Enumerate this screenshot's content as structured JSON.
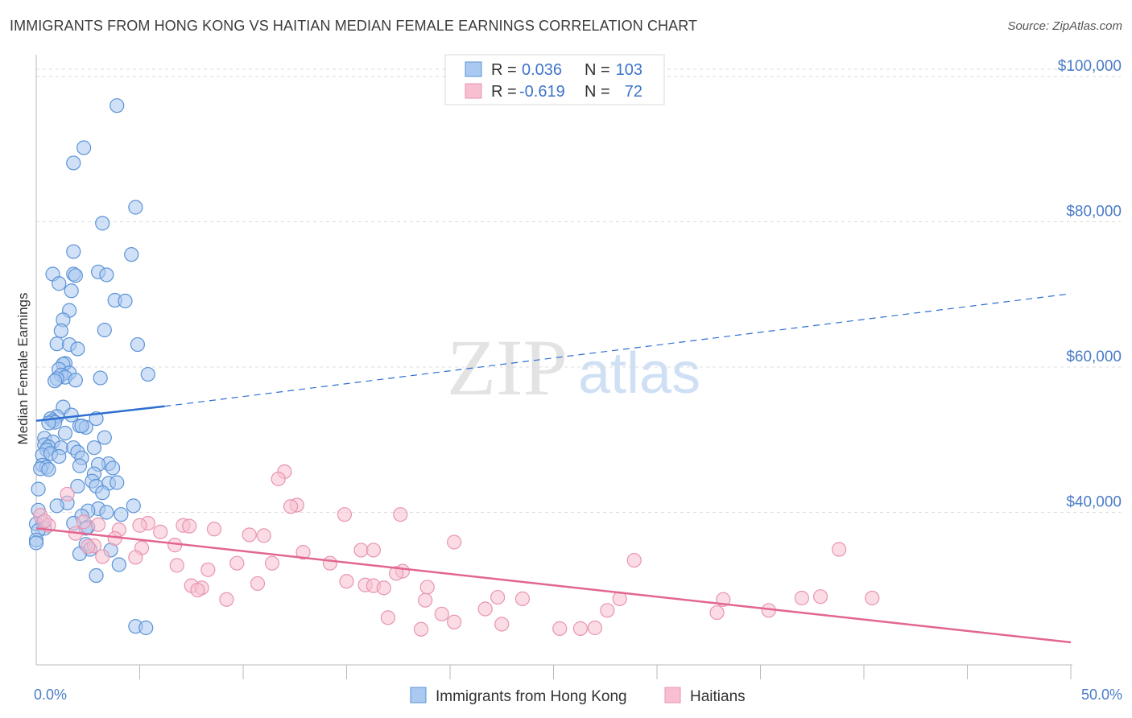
{
  "title": "IMMIGRANTS FROM HONG KONG VS HAITIAN MEDIAN FEMALE EARNINGS CORRELATION CHART",
  "source": "Source: ZipAtlas.com",
  "watermark": {
    "zip": "ZIP",
    "atlas": "atlas"
  },
  "colors": {
    "blue_fill": "#a9c9f0",
    "blue_stroke": "#5b93d6",
    "blue_line": "#2e6fd0",
    "pink_fill": "#f7bfd0",
    "pink_stroke": "#e895b0",
    "pink_line": "#e2668f",
    "axis_text": "#4a7cc9"
  },
  "legend": {
    "rows": [
      {
        "r_label": "R =",
        "r_value": "0.036",
        "n_label": "N =",
        "n_value": "103"
      },
      {
        "r_label": "R =",
        "r_value": "-0.619",
        "n_label": "N =",
        "n_value": "72"
      }
    ]
  },
  "chart_data": {
    "type": "scatter",
    "title": "IMMIGRANTS FROM HONG KONG VS HAITIAN MEDIAN FEMALE EARNINGS CORRELATION CHART",
    "xlabel": "",
    "ylabel": "Median Female Earnings",
    "xlim": [
      0,
      50
    ],
    "ylim": [
      19000,
      103000
    ],
    "x_tick_labels": [
      "0.0%",
      "50.0%"
    ],
    "y_ticks": [
      40000,
      60000,
      80000,
      100000
    ],
    "y_tick_labels": [
      "$40,000",
      "$60,000",
      "$80,000",
      "$100,000"
    ],
    "grid": true,
    "legend_position": "bottom-center",
    "series": [
      {
        "name": "Immigrants from Hong Kong",
        "R": 0.036,
        "N": 103,
        "trend": {
          "x0": 0,
          "y0": 52600,
          "x1": 6.2,
          "y1": 54600,
          "x_ext": 50,
          "y_ext": 70100
        },
        "points": [
          [
            3.9,
            96000
          ],
          [
            2.3,
            90200
          ],
          [
            1.8,
            88100
          ],
          [
            4.8,
            82000
          ],
          [
            3.2,
            79800
          ],
          [
            1.8,
            75900
          ],
          [
            4.6,
            75500
          ],
          [
            0.8,
            72800
          ],
          [
            1.8,
            72800
          ],
          [
            3.0,
            73100
          ],
          [
            1.9,
            72600
          ],
          [
            3.4,
            72700
          ],
          [
            1.1,
            71500
          ],
          [
            1.7,
            70500
          ],
          [
            3.8,
            69200
          ],
          [
            4.3,
            69100
          ],
          [
            1.6,
            67800
          ],
          [
            1.3,
            66500
          ],
          [
            1.2,
            65000
          ],
          [
            3.3,
            65100
          ],
          [
            1.0,
            63200
          ],
          [
            1.6,
            63100
          ],
          [
            4.9,
            63100
          ],
          [
            2.0,
            62500
          ],
          [
            1.4,
            60500
          ],
          [
            1.3,
            60400
          ],
          [
            5.4,
            59000
          ],
          [
            1.1,
            59700
          ],
          [
            1.6,
            59200
          ],
          [
            1.2,
            58900
          ],
          [
            1.4,
            58600
          ],
          [
            1.0,
            58400
          ],
          [
            3.1,
            58500
          ],
          [
            0.9,
            58100
          ],
          [
            1.9,
            58200
          ],
          [
            1.3,
            54500
          ],
          [
            1.0,
            53200
          ],
          [
            1.7,
            53400
          ],
          [
            0.7,
            52900
          ],
          [
            0.8,
            52600
          ],
          [
            0.9,
            52400
          ],
          [
            2.9,
            52900
          ],
          [
            0.6,
            52300
          ],
          [
            2.1,
            51900
          ],
          [
            2.4,
            51700
          ],
          [
            2.2,
            51900
          ],
          [
            1.4,
            50900
          ],
          [
            3.3,
            50300
          ],
          [
            0.4,
            50200
          ],
          [
            0.8,
            49700
          ],
          [
            0.4,
            49300
          ],
          [
            0.6,
            49000
          ],
          [
            1.2,
            48900
          ],
          [
            2.8,
            48900
          ],
          [
            0.5,
            48600
          ],
          [
            1.8,
            48900
          ],
          [
            2.0,
            48300
          ],
          [
            0.3,
            47900
          ],
          [
            0.7,
            48100
          ],
          [
            1.1,
            47700
          ],
          [
            2.2,
            47500
          ],
          [
            3.5,
            46700
          ],
          [
            3.0,
            46600
          ],
          [
            0.3,
            46500
          ],
          [
            0.5,
            46200
          ],
          [
            0.2,
            46000
          ],
          [
            2.1,
            46400
          ],
          [
            0.6,
            45900
          ],
          [
            2.8,
            45300
          ],
          [
            2.0,
            43600
          ],
          [
            2.7,
            44300
          ],
          [
            3.5,
            44000
          ],
          [
            3.9,
            44100
          ],
          [
            2.9,
            43600
          ],
          [
            0.1,
            43200
          ],
          [
            3.2,
            42700
          ],
          [
            1.5,
            41300
          ],
          [
            1.0,
            40900
          ],
          [
            3.0,
            40500
          ],
          [
            2.5,
            40200
          ],
          [
            4.7,
            40900
          ],
          [
            3.4,
            40000
          ],
          [
            0.1,
            40300
          ],
          [
            4.1,
            39700
          ],
          [
            2.2,
            39500
          ],
          [
            0.3,
            38600
          ],
          [
            2.5,
            38000
          ],
          [
            2.4,
            37800
          ],
          [
            0.0,
            38400
          ],
          [
            0.4,
            37800
          ],
          [
            0.1,
            37500
          ],
          [
            0.0,
            36200
          ],
          [
            0.0,
            35800
          ],
          [
            2.4,
            35600
          ],
          [
            2.6,
            34900
          ],
          [
            3.6,
            34800
          ],
          [
            2.1,
            34300
          ],
          [
            4.0,
            32800
          ],
          [
            2.9,
            31300
          ],
          [
            4.8,
            24300
          ],
          [
            5.3,
            24100
          ],
          [
            1.8,
            38500
          ],
          [
            3.7,
            46100
          ]
        ]
      },
      {
        "name": "Haitians",
        "R": -0.619,
        "N": 72,
        "trend": {
          "x0": 0,
          "y0": 37800,
          "x1": 50,
          "y1": 22100
        },
        "points": [
          [
            12.0,
            45600
          ],
          [
            11.7,
            44600
          ],
          [
            12.6,
            41000
          ],
          [
            12.3,
            40800
          ],
          [
            1.5,
            42500
          ],
          [
            0.2,
            39600
          ],
          [
            0.6,
            38200
          ],
          [
            2.3,
            38700
          ],
          [
            3.0,
            38300
          ],
          [
            14.9,
            39700
          ],
          [
            17.6,
            39700
          ],
          [
            5.4,
            38500
          ],
          [
            5.0,
            38200
          ],
          [
            7.1,
            38200
          ],
          [
            7.4,
            38100
          ],
          [
            8.6,
            37700
          ],
          [
            6.0,
            37300
          ],
          [
            1.9,
            37100
          ],
          [
            4.0,
            37600
          ],
          [
            10.3,
            36900
          ],
          [
            11.0,
            36800
          ],
          [
            3.8,
            36400
          ],
          [
            20.2,
            35900
          ],
          [
            6.7,
            35500
          ],
          [
            2.8,
            35400
          ],
          [
            2.5,
            35300
          ],
          [
            5.1,
            35100
          ],
          [
            15.7,
            34800
          ],
          [
            12.9,
            34500
          ],
          [
            16.3,
            34800
          ],
          [
            4.8,
            33800
          ],
          [
            3.2,
            33900
          ],
          [
            9.7,
            33000
          ],
          [
            11.4,
            33000
          ],
          [
            14.2,
            33000
          ],
          [
            6.8,
            32700
          ],
          [
            28.9,
            33400
          ],
          [
            38.8,
            34900
          ],
          [
            17.7,
            31900
          ],
          [
            8.3,
            32100
          ],
          [
            17.4,
            31600
          ],
          [
            15.0,
            30500
          ],
          [
            10.7,
            30200
          ],
          [
            7.5,
            29900
          ],
          [
            8.0,
            29600
          ],
          [
            7.8,
            29300
          ],
          [
            15.9,
            30000
          ],
          [
            16.3,
            29900
          ],
          [
            16.8,
            29600
          ],
          [
            18.9,
            29700
          ],
          [
            9.2,
            28000
          ],
          [
            18.8,
            27900
          ],
          [
            23.5,
            28100
          ],
          [
            22.3,
            28300
          ],
          [
            28.2,
            28100
          ],
          [
            33.2,
            28000
          ],
          [
            37.0,
            28200
          ],
          [
            37.9,
            28400
          ],
          [
            40.4,
            28200
          ],
          [
            21.7,
            26700
          ],
          [
            27.6,
            26500
          ],
          [
            35.4,
            26500
          ],
          [
            32.9,
            26200
          ],
          [
            19.6,
            26000
          ],
          [
            17.0,
            25500
          ],
          [
            20.2,
            24900
          ],
          [
            22.5,
            24600
          ],
          [
            27.0,
            24100
          ],
          [
            26.3,
            24000
          ],
          [
            25.3,
            24000
          ],
          [
            18.6,
            23900
          ],
          [
            0.4,
            38800
          ]
        ]
      }
    ]
  },
  "bottom_legend": {
    "series1": "Immigrants from Hong Kong",
    "series2": "Haitians"
  }
}
